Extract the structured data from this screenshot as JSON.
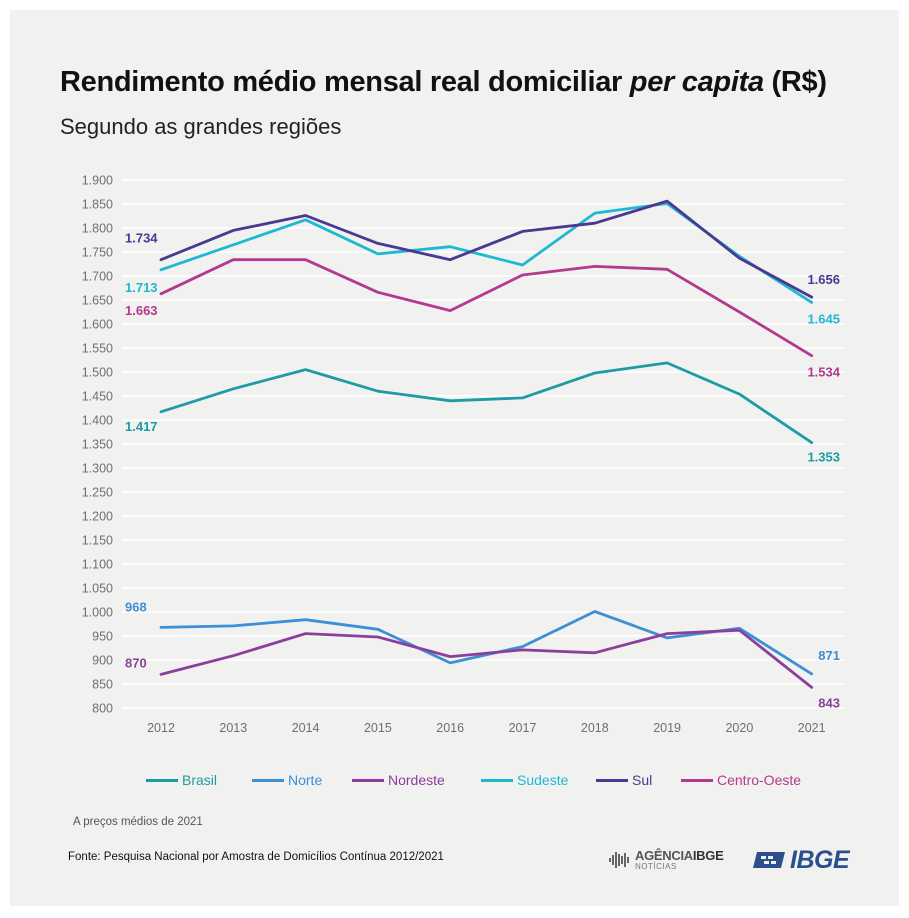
{
  "title": {
    "main": "Rendimento médio mensal real domiciliar ",
    "italic": "per capita",
    "unit": " (R$)"
  },
  "subtitle": "Segundo as grandes regiões",
  "note": "A preços médios de 2021",
  "source": "Fonte: Pesquisa Nacional por Amostra de Domicílios Contínua 2012/2021",
  "logos": {
    "agencia_main": "AGÊNCIA",
    "agencia_bold": "IBGE",
    "agencia_sub": "NOTÍCIAS",
    "ibge": "IBGE",
    "ibge_color": "#2a4f8c"
  },
  "chart_data": {
    "type": "line",
    "title": "Rendimento médio mensal real domiciliar per capita (R$)",
    "subtitle": "Segundo as grandes regiões",
    "xlabel": "",
    "ylabel": "",
    "x": [
      "2012",
      "2013",
      "2014",
      "2015",
      "2016",
      "2017",
      "2018",
      "2019",
      "2020",
      "2021"
    ],
    "ylim": [
      800,
      1900
    ],
    "ytick_step": 50,
    "ytick_labels": [
      "800",
      "850",
      "900",
      "950",
      "1.000",
      "1.050",
      "1.100",
      "1.150",
      "1.200",
      "1.250",
      "1.300",
      "1.350",
      "1.400",
      "1.450",
      "1.500",
      "1.550",
      "1.600",
      "1.650",
      "1.700",
      "1.750",
      "1.800",
      "1.850",
      "1.900"
    ],
    "grid": "horizontal",
    "legend_position": "bottom",
    "series": [
      {
        "name": "Brasil",
        "color": "#1e9ba3",
        "values": [
          1417,
          1465,
          1505,
          1460,
          1440,
          1446,
          1498,
          1519,
          1454,
          1353
        ],
        "end_labels": [
          "1.417",
          "1.353"
        ]
      },
      {
        "name": "Norte",
        "color": "#3d8fd6",
        "values": [
          968,
          971,
          984,
          964,
          894,
          928,
          1001,
          946,
          966,
          871
        ],
        "end_labels": [
          "968",
          "871"
        ]
      },
      {
        "name": "Nordeste",
        "color": "#8b3f9c",
        "values": [
          870,
          909,
          955,
          948,
          907,
          921,
          915,
          955,
          962,
          843
        ],
        "end_labels": [
          "870",
          "843"
        ]
      },
      {
        "name": "Sudeste",
        "color": "#1fb8d2",
        "values": [
          1713,
          1765,
          1817,
          1746,
          1761,
          1723,
          1831,
          1851,
          1741,
          1645
        ],
        "end_labels": [
          "1.713",
          "1.645"
        ]
      },
      {
        "name": "Sul",
        "color": "#4a3893",
        "values": [
          1734,
          1795,
          1826,
          1768,
          1734,
          1793,
          1810,
          1856,
          1737,
          1656
        ],
        "end_labels": [
          "1.734",
          "1.656"
        ]
      },
      {
        "name": "Centro-Oeste",
        "color": "#b33a8f",
        "values": [
          1663,
          1734,
          1734,
          1666,
          1628,
          1702,
          1720,
          1714,
          1625,
          1534
        ],
        "end_labels": [
          "1.663",
          "1.534"
        ]
      }
    ]
  }
}
